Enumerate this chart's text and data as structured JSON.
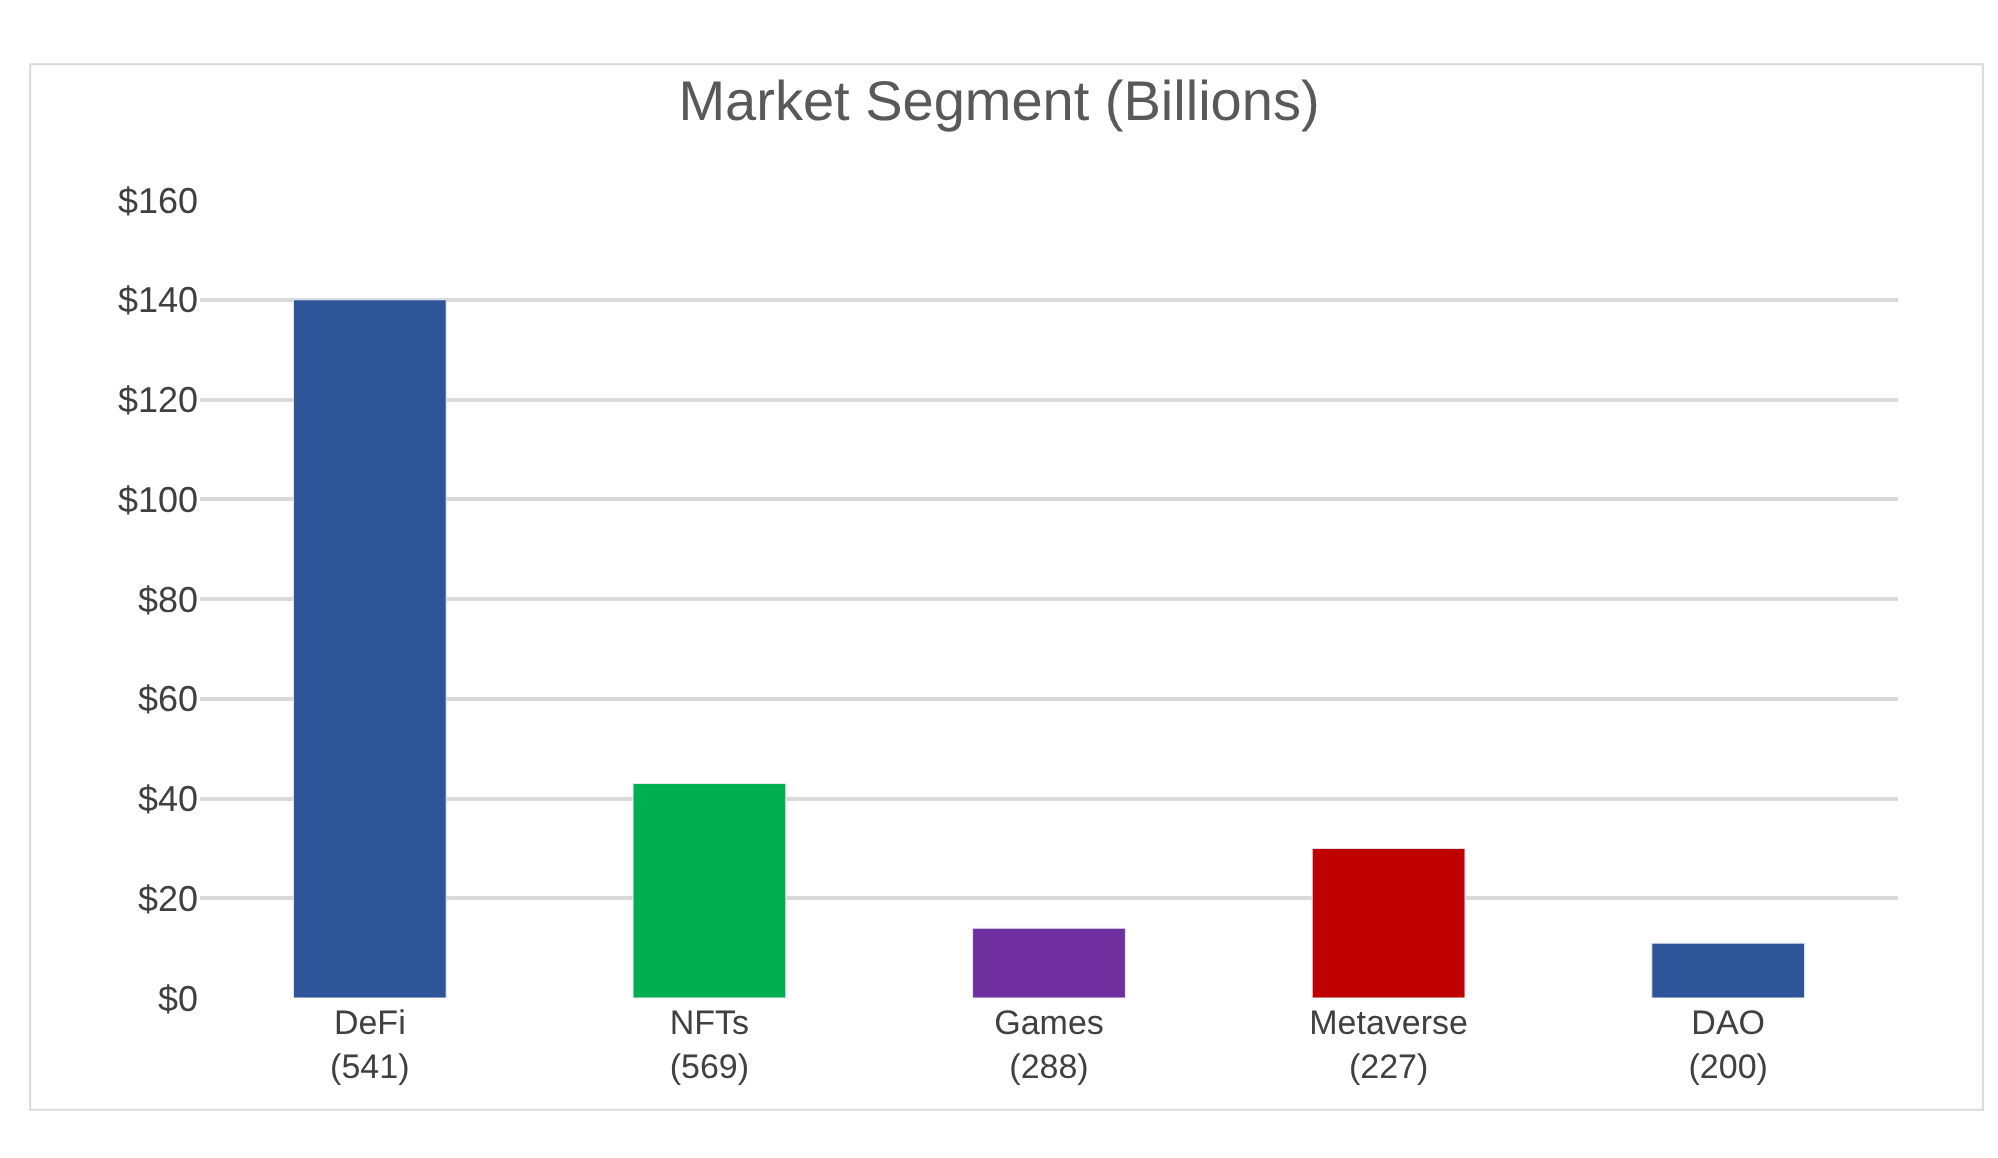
{
  "chart_data": {
    "type": "bar",
    "title": "Market Segment (Billions)",
    "categories": [
      "DeFi\n(541)",
      "NFTs\n(569)",
      "Games\n(288)",
      "Metaverse\n(227)",
      "DAO\n(200)"
    ],
    "values": [
      140,
      43,
      14,
      30,
      11
    ],
    "colors": [
      "#2e5597",
      "#00b050",
      "#7030a0",
      "#c00000",
      "#2e5597"
    ],
    "ylim": [
      0,
      160
    ],
    "yticks": [
      {
        "value": 0,
        "label": "$0"
      },
      {
        "value": 20,
        "label": "$20"
      },
      {
        "value": 40,
        "label": "$40"
      },
      {
        "value": 60,
        "label": "$60"
      },
      {
        "value": 80,
        "label": "$80"
      },
      {
        "value": 100,
        "label": "$100"
      },
      {
        "value": 120,
        "label": "$120"
      },
      {
        "value": 140,
        "label": "$140"
      },
      {
        "value": 160,
        "label": "$160"
      }
    ],
    "grid": "y",
    "legend": false
  }
}
